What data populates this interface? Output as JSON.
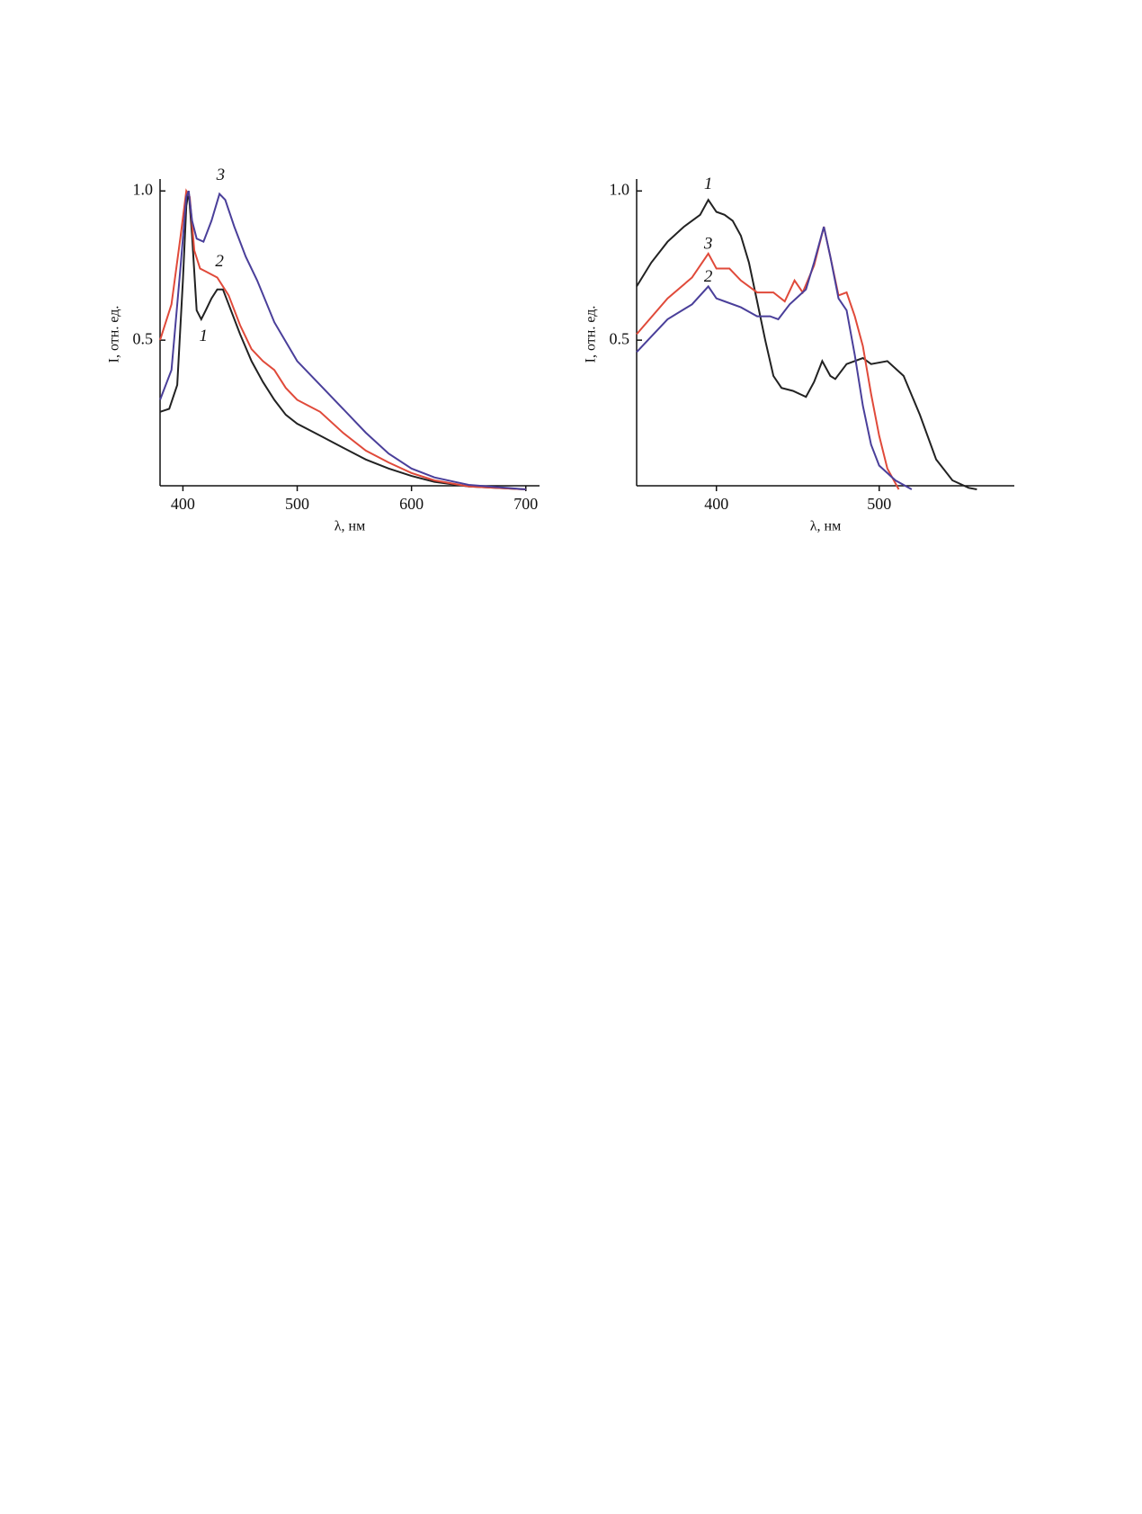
{
  "chart_data": [
    {
      "type": "line",
      "xlabel": "λ, нм",
      "ylabel": "I, отн. ед.",
      "xlim": [
        380,
        712
      ],
      "xticks": [
        400,
        500,
        600,
        700
      ],
      "ylim": [
        0,
        1.04
      ],
      "yticks": [
        {
          "value": 0.5,
          "label": "0.5"
        },
        {
          "value": 1.0,
          "label": "1.0"
        }
      ],
      "series": [
        {
          "name": "1",
          "color": "#222222",
          "x": [
            380,
            388,
            395,
            400,
            403,
            405,
            408,
            412,
            416,
            420,
            425,
            430,
            435,
            440,
            450,
            460,
            470,
            480,
            490,
            500,
            520,
            540,
            560,
            580,
            600,
            620,
            650,
            700
          ],
          "values": [
            0.26,
            0.27,
            0.35,
            0.7,
            0.95,
            1.0,
            0.85,
            0.6,
            0.57,
            0.6,
            0.64,
            0.67,
            0.67,
            0.62,
            0.52,
            0.43,
            0.36,
            0.3,
            0.25,
            0.22,
            0.18,
            0.14,
            0.1,
            0.07,
            0.045,
            0.025,
            0.01,
            0
          ]
        },
        {
          "name": "2",
          "color": "#e04a3a",
          "x": [
            380,
            390,
            398,
            403,
            406,
            410,
            415,
            420,
            430,
            440,
            450,
            460,
            470,
            480,
            490,
            500,
            510,
            520,
            540,
            560,
            580,
            600,
            620,
            650,
            700
          ],
          "values": [
            0.5,
            0.62,
            0.85,
            1.0,
            0.98,
            0.8,
            0.74,
            0.73,
            0.71,
            0.65,
            0.55,
            0.47,
            0.43,
            0.4,
            0.34,
            0.3,
            0.28,
            0.26,
            0.19,
            0.13,
            0.09,
            0.055,
            0.03,
            0.01,
            0
          ]
        },
        {
          "name": "3",
          "color": "#4a3f9a",
          "x": [
            380,
            390,
            398,
            403,
            405,
            408,
            412,
            418,
            425,
            432,
            437,
            445,
            455,
            465,
            480,
            500,
            520,
            540,
            560,
            580,
            600,
            620,
            650,
            700
          ],
          "values": [
            0.3,
            0.4,
            0.75,
            0.98,
            1.0,
            0.9,
            0.84,
            0.83,
            0.9,
            0.99,
            0.97,
            0.88,
            0.78,
            0.7,
            0.56,
            0.43,
            0.35,
            0.27,
            0.19,
            0.12,
            0.07,
            0.04,
            0.015,
            0
          ]
        }
      ],
      "annotations": [
        {
          "text": "3",
          "x": 433,
          "y": 1.05
        },
        {
          "text": "2",
          "x": 432,
          "y": 0.76
        },
        {
          "text": "1",
          "x": 418,
          "y": 0.51
        }
      ]
    },
    {
      "type": "line",
      "xlabel": "λ, нм",
      "ylabel": "I, отн. ед.",
      "xlim": [
        351,
        583
      ],
      "xticks": [
        400,
        500
      ],
      "ylim": [
        0,
        1.04
      ],
      "yticks": [
        {
          "value": 0.5,
          "label": "0.5"
        },
        {
          "value": 1.0,
          "label": "1.0"
        }
      ],
      "series": [
        {
          "name": "1",
          "color": "#222222",
          "x": [
            351,
            360,
            370,
            380,
            390,
            395,
            400,
            405,
            410,
            415,
            420,
            425,
            430,
            435,
            440,
            447,
            455,
            460,
            465,
            470,
            473,
            480,
            490,
            495,
            505,
            515,
            525,
            535,
            545,
            555,
            560
          ],
          "values": [
            0.68,
            0.76,
            0.83,
            0.88,
            0.92,
            0.97,
            0.93,
            0.92,
            0.9,
            0.85,
            0.76,
            0.63,
            0.5,
            0.38,
            0.34,
            0.33,
            0.31,
            0.36,
            0.43,
            0.38,
            0.37,
            0.42,
            0.44,
            0.42,
            0.43,
            0.38,
            0.25,
            0.1,
            0.03,
            0.005,
            0
          ]
        },
        {
          "name": "3",
          "color": "#e04a3a",
          "x": [
            351,
            370,
            385,
            395,
            400,
            408,
            415,
            425,
            435,
            442,
            448,
            453,
            460,
            466,
            470,
            475,
            480,
            485,
            490,
            495,
            500,
            505,
            512
          ],
          "values": [
            0.52,
            0.64,
            0.71,
            0.79,
            0.74,
            0.74,
            0.7,
            0.66,
            0.66,
            0.63,
            0.7,
            0.66,
            0.75,
            0.88,
            0.78,
            0.65,
            0.66,
            0.58,
            0.48,
            0.32,
            0.18,
            0.07,
            0
          ]
        },
        {
          "name": "2",
          "color": "#4a3f9a",
          "x": [
            351,
            370,
            385,
            395,
            400,
            405,
            415,
            425,
            433,
            438,
            445,
            455,
            460,
            466,
            470,
            475,
            480,
            485,
            490,
            495,
            500,
            510,
            520
          ],
          "values": [
            0.46,
            0.57,
            0.62,
            0.68,
            0.64,
            0.63,
            0.61,
            0.58,
            0.58,
            0.57,
            0.62,
            0.67,
            0.76,
            0.88,
            0.78,
            0.64,
            0.6,
            0.45,
            0.28,
            0.15,
            0.08,
            0.03,
            0
          ]
        }
      ],
      "annotations": [
        {
          "text": "1",
          "x": 395,
          "y": 1.02
        },
        {
          "text": "3",
          "x": 395,
          "y": 0.82
        },
        {
          "text": "2",
          "x": 395,
          "y": 0.71
        }
      ]
    }
  ]
}
